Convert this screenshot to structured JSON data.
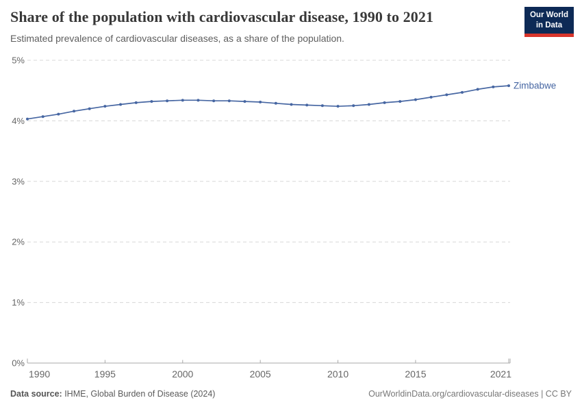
{
  "header": {
    "title": "Share of the population with cardiovascular disease, 1990 to 2021",
    "subtitle": "Estimated prevalence of cardiovascular diseases, as a share of the population."
  },
  "logo": {
    "line1": "Our World",
    "line2": "in Data",
    "bg_color": "#0d2a56",
    "accent_color": "#d8352b"
  },
  "chart_data": {
    "type": "line",
    "title": "Share of the population with cardiovascular disease, 1990 to 2021",
    "xlabel": "",
    "ylabel": "",
    "x": [
      1990,
      1991,
      1992,
      1993,
      1994,
      1995,
      1996,
      1997,
      1998,
      1999,
      2000,
      2001,
      2002,
      2003,
      2004,
      2005,
      2006,
      2007,
      2008,
      2009,
      2010,
      2011,
      2012,
      2013,
      2014,
      2015,
      2016,
      2017,
      2018,
      2019,
      2020,
      2021
    ],
    "series": [
      {
        "name": "Zimbabwe",
        "color": "#4666a2",
        "values": [
          4.03,
          4.07,
          4.11,
          4.16,
          4.2,
          4.24,
          4.27,
          4.3,
          4.32,
          4.33,
          4.34,
          4.34,
          4.33,
          4.33,
          4.32,
          4.31,
          4.29,
          4.27,
          4.26,
          4.25,
          4.24,
          4.25,
          4.27,
          4.3,
          4.32,
          4.35,
          4.39,
          4.43,
          4.47,
          4.52,
          4.56,
          4.58
        ]
      }
    ],
    "ylim": [
      0,
      5
    ],
    "yticks": [
      {
        "value": 0,
        "label": "0%"
      },
      {
        "value": 1,
        "label": "1%"
      },
      {
        "value": 2,
        "label": "2%"
      },
      {
        "value": 3,
        "label": "3%"
      },
      {
        "value": 4,
        "label": "4%"
      },
      {
        "value": 5,
        "label": "5%"
      }
    ],
    "xticks": [
      {
        "value": 1990,
        "label": "1990"
      },
      {
        "value": 1995,
        "label": "1995"
      },
      {
        "value": 2000,
        "label": "2000"
      },
      {
        "value": 2005,
        "label": "2005"
      },
      {
        "value": 2010,
        "label": "2010"
      },
      {
        "value": 2015,
        "label": "2015"
      },
      {
        "value": 2021,
        "label": "2021"
      }
    ],
    "grid": "horizontal-dashed",
    "legend_position": "end-of-line-label",
    "grid_color": "#d8d8d8",
    "axis_color": "#a8a8a8",
    "tick_label_color": "#666666"
  },
  "footer": {
    "datasource_label": "Data source:",
    "datasource_value": " IHME, Global Burden of Disease (2024)",
    "attribution": "OurWorldinData.org/cardiovascular-diseases | CC BY"
  }
}
